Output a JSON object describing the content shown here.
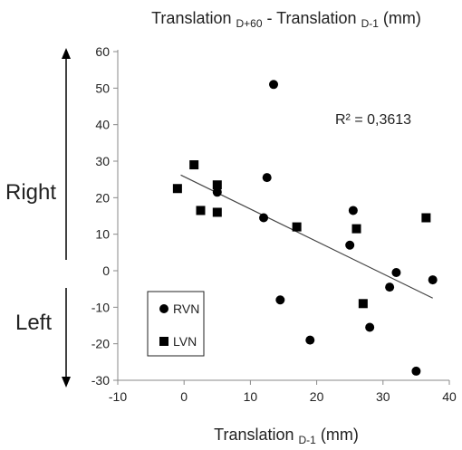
{
  "chart_data": {
    "type": "scatter",
    "title": {
      "main": "Translation ",
      "sub1": "D+60",
      "mid": " - Translation ",
      "sub2": "D-1",
      "end": " (mm)"
    },
    "xlabel": {
      "main": "Translation ",
      "sub": "D-1",
      "end": " (mm)"
    },
    "xlim": [
      -10,
      40
    ],
    "ylim": [
      -30,
      60
    ],
    "xticks": [
      "-10",
      "0",
      "10",
      "20",
      "30",
      "40"
    ],
    "yticks": [
      "60",
      "50",
      "40",
      "30",
      "20",
      "10",
      "0",
      "-10",
      "-20",
      "-30"
    ],
    "series": [
      {
        "name": "RVN",
        "marker": "circle",
        "x": [
          13.5,
          12.5,
          5,
          12,
          25.5,
          25,
          32,
          31,
          37.5,
          14.5,
          28,
          19,
          35
        ],
        "y": [
          51,
          25.5,
          21.5,
          14.5,
          16.5,
          7,
          -0.5,
          -4.5,
          -2.5,
          -8,
          -15.5,
          -19,
          -27.5
        ]
      },
      {
        "name": "LVN",
        "marker": "square",
        "x": [
          -1,
          1.5,
          2.5,
          5,
          5,
          17,
          26,
          27,
          36.5
        ],
        "y": [
          22.5,
          29,
          16.5,
          23.5,
          16,
          12,
          11.5,
          -9,
          14.5
        ]
      }
    ],
    "trendline": {
      "x": [
        -0.5,
        37.5
      ],
      "y": [
        26.2,
        -7.5
      ]
    },
    "annotation": "R² = 0,3613",
    "side_labels": {
      "top": "Right",
      "bottom": "Left"
    },
    "legend_position": "bottom-left",
    "grid": false,
    "colors": {
      "marker": "#000000",
      "axis": "#888888",
      "trendline": "#444444",
      "arrow": "#000000"
    }
  }
}
